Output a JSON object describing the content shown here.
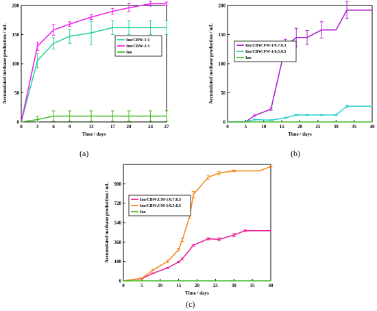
{
  "chart_data": [
    {
      "type": "line",
      "panel_label": "(a)",
      "xlabel": "Time / days",
      "ylabel": "Accumulated methane production / mL",
      "xlim": [
        0,
        27
      ],
      "ylim": [
        0,
        200
      ],
      "xticks": [
        0,
        3,
        6,
        9,
        13,
        17,
        20,
        24,
        27
      ],
      "yticks": [
        0,
        50,
        100,
        150,
        200
      ],
      "legend_position": "middle-right",
      "series": [
        {
          "name": "Ino/CBW-1:1",
          "color": "#2ed19a",
          "x": [
            0,
            3,
            6,
            9,
            13,
            17,
            20,
            24,
            27
          ],
          "y": [
            0,
            105,
            135,
            147,
            153,
            162,
            162,
            162,
            162
          ],
          "err": [
            0,
            12,
            10,
            12,
            20,
            12,
            12,
            12,
            12
          ]
        },
        {
          "name": "Ino/CBW-2:1",
          "color": "#ee22ee",
          "x": [
            0,
            3,
            6,
            9,
            13,
            17,
            20,
            24,
            27
          ],
          "y": [
            0,
            130,
            158,
            168,
            180,
            190,
            196,
            203,
            203
          ],
          "err": [
            0,
            7,
            9,
            4,
            4,
            5,
            7,
            4,
            3
          ]
        },
        {
          "name": "Ino",
          "color": "#44bb22",
          "x": [
            0,
            3,
            6,
            9,
            13,
            17,
            20,
            24,
            27
          ],
          "y": [
            0,
            4,
            10,
            10,
            10,
            10,
            10,
            10,
            10
          ],
          "err": [
            0,
            6,
            9,
            9,
            9,
            9,
            9,
            9,
            9
          ]
        }
      ]
    },
    {
      "type": "line",
      "panel_label": "(b)",
      "xlabel": "Time / days",
      "ylabel": "Accumulated methane production / mL",
      "xlim": [
        0,
        40
      ],
      "ylim": [
        0,
        200
      ],
      "xticks": [
        0,
        5,
        10,
        15,
        20,
        25,
        30,
        35,
        40
      ],
      "yticks": [
        0,
        50,
        100,
        150,
        200
      ],
      "legend_position": "middle-left",
      "series": [
        {
          "name": "Ino/CBW:FW-1/0.7:0.3",
          "color": "#aa22cc",
          "x": [
            0,
            5,
            7.5,
            12,
            16,
            19,
            22,
            26,
            30,
            33,
            40
          ],
          "y": [
            0,
            0,
            11,
            22,
            130,
            145,
            145,
            158,
            158,
            192,
            192
          ],
          "err": [
            0,
            0,
            1,
            2,
            12,
            16,
            12,
            14,
            0,
            15,
            0
          ]
        },
        {
          "name": "Ino/CBW:FW-1/0.5:0.5",
          "color": "#33d0d0",
          "x": [
            0,
            5,
            7.5,
            12,
            16,
            19,
            22,
            26,
            30,
            33,
            40
          ],
          "y": [
            0,
            0,
            4,
            3,
            7,
            12,
            12,
            12,
            12,
            27,
            27
          ],
          "err": [
            0,
            0,
            1,
            1,
            1,
            1,
            1,
            1,
            1,
            2,
            0
          ]
        },
        {
          "name": "Ino",
          "color": "#44bb22",
          "x": [
            0,
            5,
            40
          ],
          "y": [
            0,
            0,
            0
          ],
          "err": [
            0,
            0,
            0
          ]
        }
      ]
    },
    {
      "type": "line",
      "panel_label": "(c)",
      "xlabel": "Time / days",
      "ylabel": "Accumulated methane production / mL",
      "xlim": [
        0,
        40
      ],
      "ylim": [
        0,
        1080
      ],
      "xticks": [
        0,
        5,
        10,
        15,
        20,
        25,
        30,
        35,
        40
      ],
      "yticks": [
        0,
        180,
        360,
        540,
        720,
        900
      ],
      "legend_position": "middle-left",
      "series": [
        {
          "name": "Ino/CBW:CM-1/0.7:0.3",
          "color": "#ee2299",
          "x": [
            0,
            5,
            8,
            12,
            15,
            16,
            19,
            23,
            26,
            30,
            33,
            40
          ],
          "y": [
            0,
            20,
            70,
            120,
            175,
            205,
            330,
            390,
            385,
            425,
            465,
            465
          ],
          "err": [
            0,
            2,
            4,
            4,
            6,
            10,
            8,
            10,
            14,
            14,
            8,
            0
          ]
        },
        {
          "name": "Ino/CBW:CM-1/0.5:0.5",
          "color": "#f58a1f",
          "x": [
            0,
            5,
            8,
            12,
            15,
            16,
            18,
            19,
            23,
            26,
            30,
            33,
            37,
            40
          ],
          "y": [
            0,
            24,
            100,
            180,
            290,
            380,
            600,
            800,
            960,
            1000,
            1020,
            1020,
            1020,
            1060
          ],
          "err": [
            0,
            4,
            8,
            10,
            12,
            15,
            20,
            30,
            20,
            15,
            8,
            0,
            0,
            4
          ]
        },
        {
          "name": "Ino",
          "color": "#44bb22",
          "x": [
            0,
            40
          ],
          "y": [
            0,
            0
          ],
          "err": [
            0,
            0
          ]
        }
      ]
    }
  ]
}
